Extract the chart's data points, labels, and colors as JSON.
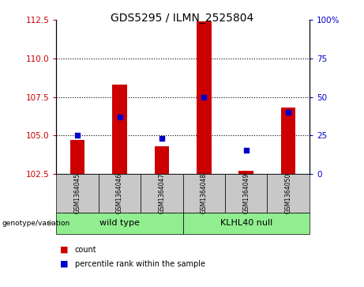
{
  "title": "GDS5295 / ILMN_2525804",
  "samples": [
    "GSM1364045",
    "GSM1364046",
    "GSM1364047",
    "GSM1364048",
    "GSM1364049",
    "GSM1364050"
  ],
  "bar_values": [
    104.7,
    108.3,
    104.3,
    112.4,
    102.7,
    106.8
  ],
  "percentile_raw": [
    25,
    37,
    23,
    50,
    15,
    40
  ],
  "left_yticks": [
    102.5,
    105.0,
    107.5,
    110.0,
    112.5
  ],
  "right_yticks": [
    0,
    25,
    50,
    75,
    100
  ],
  "ylim_left": [
    102.5,
    112.5
  ],
  "ylim_right": [
    0,
    100
  ],
  "bar_color": "#CC0000",
  "dot_color": "#0000CC",
  "label_color_left": "#CC0000",
  "label_color_right": "#0000CC",
  "tick_area_color": "#C8C8C8",
  "wt_color": "#90EE90",
  "kl_color": "#90EE90",
  "genotype_label": "genotype/variation",
  "legend_count": "count",
  "legend_percentile": "percentile rank within the sample",
  "bar_width": 0.35,
  "bar_bottom": 102.5
}
